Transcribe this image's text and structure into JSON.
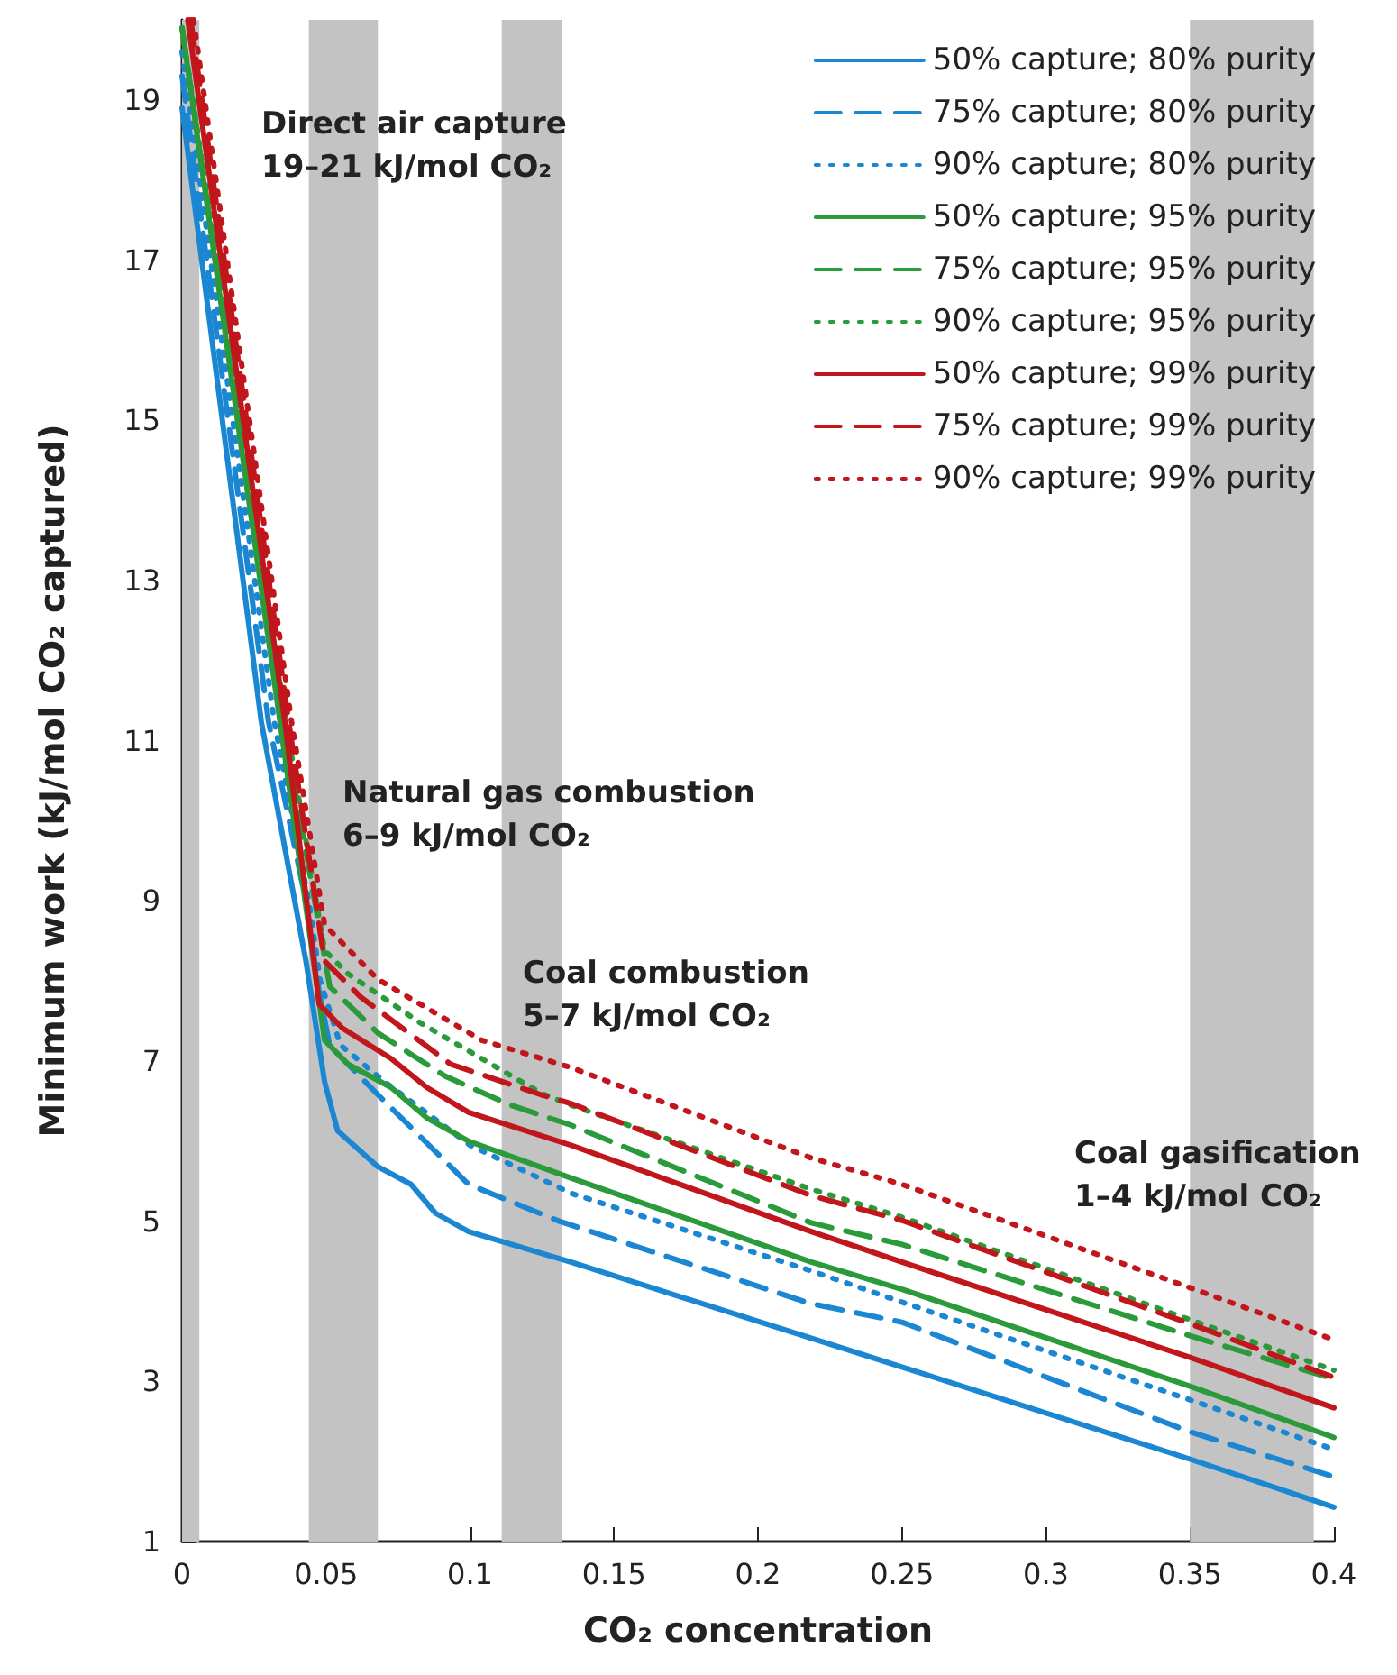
{
  "chart_data": {
    "type": "line",
    "xlabel": "CO₂ concentration",
    "ylabel": "Minimum work (kJ/mol CO₂ captured)",
    "xlim": [
      0,
      0.4
    ],
    "xticks": [
      0,
      0.05,
      0.1,
      0.15,
      0.2,
      0.25,
      0.3,
      0.35,
      0.4
    ],
    "ylim": [
      1,
      20
    ],
    "yticks": [
      1,
      3,
      5,
      7,
      9,
      11,
      13,
      15,
      17,
      19
    ],
    "grid": false,
    "legend": "top right",
    "marker": "none",
    "series": [
      {
        "name": "50% capture; 80% purity",
        "color": "#1b87d2",
        "line_style": "solid",
        "x": [
          0,
          0.0275,
          0.043,
          0.0495,
          0.054,
          0.068,
          0.0795,
          0.088,
          0.0995,
          0.135,
          0.2185,
          0.25,
          0.35,
          0.4
        ],
        "values": [
          18.9,
          11.24,
          8.25,
          6.74,
          6.13,
          5.68,
          5.46,
          5.1,
          4.87,
          4.49,
          3.54,
          3.18,
          2.03,
          1.43
        ]
      },
      {
        "name": "75% capture; 80% purity",
        "color": "#1b87d2",
        "line_style": "dashed",
        "x": [
          0,
          0.03,
          0.043,
          0.0476,
          0.0513,
          0.068,
          0.0995,
          0.131,
          0.2185,
          0.25,
          0.35,
          0.4
        ],
        "values": [
          19.3,
          11.24,
          9.0,
          7.86,
          7.19,
          6.58,
          5.46,
          5.0,
          3.97,
          3.74,
          2.37,
          1.81
        ]
      },
      {
        "name": "90% capture; 80% purity",
        "color": "#1b87d2",
        "line_style": "dotted",
        "x": [
          0,
          0.032,
          0.044,
          0.048,
          0.055,
          0.07,
          0.1,
          0.135,
          0.2185,
          0.25,
          0.35,
          0.4
        ],
        "values": [
          19.6,
          11.24,
          9.0,
          8.0,
          7.2,
          6.75,
          5.95,
          5.35,
          4.38,
          3.99,
          2.77,
          2.15
        ]
      },
      {
        "name": "50% capture; 95% purity",
        "color": "#2a9a3a",
        "line_style": "solid",
        "x": [
          0,
          0.034,
          0.0495,
          0.0576,
          0.0726,
          0.085,
          0.0995,
          0.135,
          0.2185,
          0.25,
          0.35,
          0.4
        ],
        "values": [
          19.9,
          11.24,
          7.26,
          6.96,
          6.67,
          6.29,
          6.0,
          5.54,
          4.49,
          4.15,
          2.94,
          2.3
        ]
      },
      {
        "name": "75% capture; 95% purity",
        "color": "#2a9a3a",
        "line_style": "dashed",
        "x": [
          0,
          0.035,
          0.0513,
          0.068,
          0.0914,
          0.114,
          0.135,
          0.2185,
          0.25,
          0.35,
          0.4
        ],
        "values": [
          19.9,
          11.24,
          7.93,
          7.35,
          6.81,
          6.45,
          6.2,
          4.98,
          4.71,
          3.57,
          3.03
        ]
      },
      {
        "name": "90% capture; 95% purity",
        "color": "#2a9a3a",
        "line_style": "dotted",
        "x": [
          0,
          0.036,
          0.0495,
          0.0576,
          0.0826,
          0.1246,
          0.135,
          0.2185,
          0.25,
          0.35,
          0.4
        ],
        "values": [
          19.9,
          11.24,
          8.38,
          8.09,
          7.48,
          6.6,
          6.45,
          5.4,
          5.05,
          3.77,
          3.14
        ]
      },
      {
        "name": "50% capture; 99% purity",
        "color": "#c0161c",
        "line_style": "solid",
        "x": [
          0.002,
          0.0357,
          0.0476,
          0.0557,
          0.0726,
          0.085,
          0.0995,
          0.135,
          0.2185,
          0.25,
          0.35,
          0.4
        ],
        "values": [
          20,
          11.24,
          7.71,
          7.41,
          7.03,
          6.67,
          6.36,
          5.95,
          4.87,
          4.49,
          3.3,
          2.67
        ]
      },
      {
        "name": "75% capture; 99% purity",
        "color": "#c0161c",
        "line_style": "dashed",
        "x": [
          0.003,
          0.037,
          0.0495,
          0.062,
          0.0933,
          0.1246,
          0.135,
          0.2185,
          0.25,
          0.35,
          0.4
        ],
        "values": [
          20,
          11.24,
          8.25,
          7.8,
          6.96,
          6.58,
          6.47,
          5.32,
          5.01,
          3.72,
          3.05
        ]
      },
      {
        "name": "90% capture; 99% purity",
        "color": "#c0161c",
        "line_style": "dotted",
        "x": [
          0.004,
          0.038,
          0.0495,
          0.068,
          0.104,
          0.135,
          0.2185,
          0.25,
          0.35,
          0.4
        ],
        "values": [
          20,
          11.24,
          8.7,
          8.02,
          7.26,
          6.92,
          5.79,
          5.46,
          4.17,
          3.52
        ]
      }
    ],
    "bands": [
      {
        "axis": "x",
        "from": 0,
        "to": 0.006,
        "color": "#c3c3c3"
      },
      {
        "axis": "x",
        "from": 0.044,
        "to": 0.068,
        "color": "#c3c3c3"
      },
      {
        "axis": "x",
        "from": 0.111,
        "to": 0.132,
        "color": "#c3c3c3"
      },
      {
        "axis": "x",
        "from": 0.35,
        "to": 0.393,
        "color": "#c3c3c3"
      }
    ],
    "annotations": [
      "Direct air capture\n19–21 kJ/mol CO₂",
      "Natural gas combustion\n6–9 kJ/mol CO₂",
      "Coal combustion\n5–7 kJ/mol CO₂",
      "Coal gasification\n1–4 kJ/mol CO₂"
    ]
  }
}
